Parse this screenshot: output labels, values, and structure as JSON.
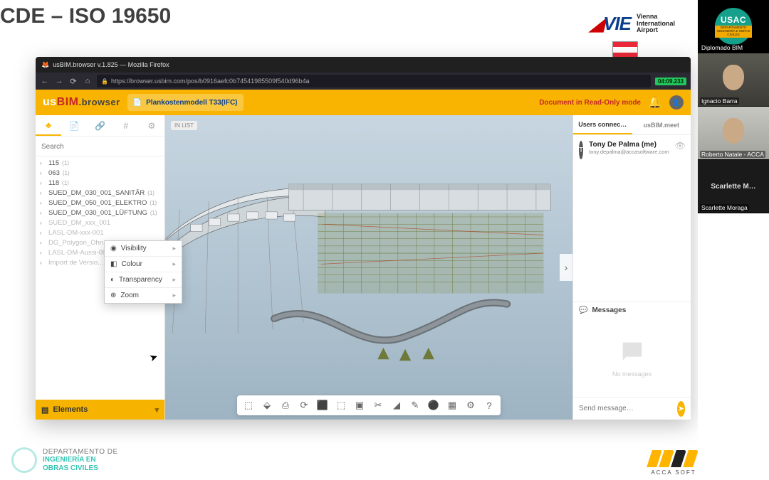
{
  "slide": {
    "title": "CDE – ISO 19650",
    "vie": {
      "mark": "VIE",
      "line1": "Vienna",
      "line2": "International",
      "line3": "Airport"
    }
  },
  "browser": {
    "title": "usBIM.browser v.1.825 — Mozilla Firefox",
    "url": "https://browser.usbim.com/pos/b0916aefc0b74541985509f540d96b4a",
    "rec": "04:09.233"
  },
  "app": {
    "brand_us": "us",
    "brand_bim": "BIM",
    "brand_suffix": ".browser",
    "file": "Plankostenmodell T33(IFC)",
    "readonly": "Document in Read-Only mode",
    "pill_left": "IN LIST"
  },
  "left": {
    "search_placeholder": "Search",
    "tree": [
      {
        "label": "115",
        "count": "(1)"
      },
      {
        "label": "063",
        "count": "(1)"
      },
      {
        "label": "118",
        "count": "(1)"
      },
      {
        "label": "SUED_DM_030_001_SANITÄR",
        "count": "(1)"
      },
      {
        "label": "SUED_DM_050_001_ELEKTRO",
        "count": "(1)"
      },
      {
        "label": "SUED_DM_030_001_LÜFTUNG",
        "count": "(1)"
      },
      {
        "label": "SUED_DM_xxx_001",
        "count": "",
        "dim": true
      },
      {
        "label": "LASL-DM-xxx-001",
        "count": "",
        "dim": true
      },
      {
        "label": "DG_Polygon_Ohn...",
        "count": "",
        "dim": true
      },
      {
        "label": "LASL-DM-Aussi-00",
        "count": "",
        "dim": true
      },
      {
        "label": "Import de Versio...",
        "count": "",
        "dim": true
      }
    ],
    "context": [
      {
        "label": "Visibility",
        "icon": "◉"
      },
      {
        "label": "Colour",
        "icon": "◧"
      },
      {
        "label": "Transparency",
        "icon": "◐"
      },
      {
        "label": "Zoom",
        "icon": "⊕"
      }
    ],
    "footer": "Elements"
  },
  "right": {
    "tabs": [
      "Users connec…",
      "usBIM.meet"
    ],
    "user": {
      "name": "Tony De Palma (me)",
      "email": "tony.depalma@accasoftware.com"
    },
    "messages_label": "Messages",
    "nomessages": "No messages",
    "compose_placeholder": "Send message…"
  },
  "toolbar_icons": [
    "⬚",
    "⬙",
    "⎙",
    "⟳",
    "⬛",
    "⬚",
    "▣",
    "✂",
    "◢",
    "✎",
    "⚫",
    "▦",
    "⚙",
    "?"
  ],
  "footer": {
    "dept": {
      "l1": "DEPARTAMENTO DE",
      "l2": "INGENIERÍA EN",
      "l3": "OBRAS CIVILES"
    },
    "acca": "ACCA SOFT"
  },
  "zoom": {
    "tiles": [
      {
        "kind": "usach",
        "label": "Diplomado BIM",
        "badge_big": "USAC",
        "badge_sm": "DEPARTAMENTO INGENIERÍA E OBRAS CIVILES"
      },
      {
        "kind": "cam",
        "label": "Ignacio Barra"
      },
      {
        "kind": "cam",
        "label": "Roberto Natale - ACCA"
      },
      {
        "kind": "nocam",
        "label": "Scarlette Moraga",
        "center": "Scarlette M…"
      }
    ]
  },
  "colors": {
    "accent": "#f8b400",
    "brand_red": "#c62828",
    "teal": "#34c3b3",
    "vie_blue": "#0b3f8e"
  }
}
